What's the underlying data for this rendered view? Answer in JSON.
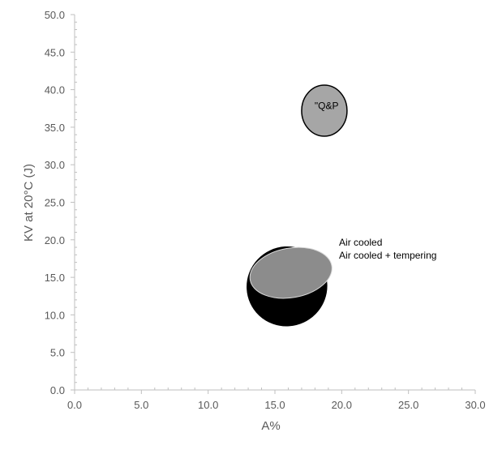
{
  "chart_data": {
    "type": "scatter",
    "title": "",
    "xlabel": "A%",
    "ylabel": "KV at 20°C (J)",
    "xlim": [
      0,
      30
    ],
    "ylim": [
      0,
      50
    ],
    "x_ticks": [
      "0.0",
      "5.0",
      "10.0",
      "15.0",
      "20.0",
      "25.0",
      "30.0"
    ],
    "y_ticks": [
      "0.0",
      "5.0",
      "10.0",
      "15.0",
      "20.0",
      "25.0",
      "30.0",
      "35.0",
      "40.0",
      "45.0",
      "50.0"
    ],
    "grid": false,
    "regions": [
      {
        "label": "Air cooled + tempering",
        "shape": "ellipse",
        "center": [
          15.9,
          13.8
        ],
        "x_range": [
          12.9,
          18.9
        ],
        "y_range": [
          8.7,
          19.2
        ],
        "color": "#000000"
      },
      {
        "label": "Air cooled",
        "shape": "ellipse",
        "center": [
          16.2,
          15.6
        ],
        "x_range": [
          13.1,
          19.3
        ],
        "y_range": [
          12.3,
          18.9
        ],
        "color": "#8c8c8c"
      },
      {
        "label": "\"Q&P",
        "shape": "ellipse",
        "center": [
          18.7,
          37.2
        ],
        "x_range": [
          17.0,
          20.4
        ],
        "y_range": [
          33.8,
          40.6
        ],
        "color": "#a6a6a6"
      }
    ],
    "annotations": [
      {
        "text": "Air cooled",
        "x": 19.8,
        "y": 19.2
      },
      {
        "text": "Air cooled + tempering",
        "x": 19.8,
        "y": 17.5
      }
    ]
  }
}
